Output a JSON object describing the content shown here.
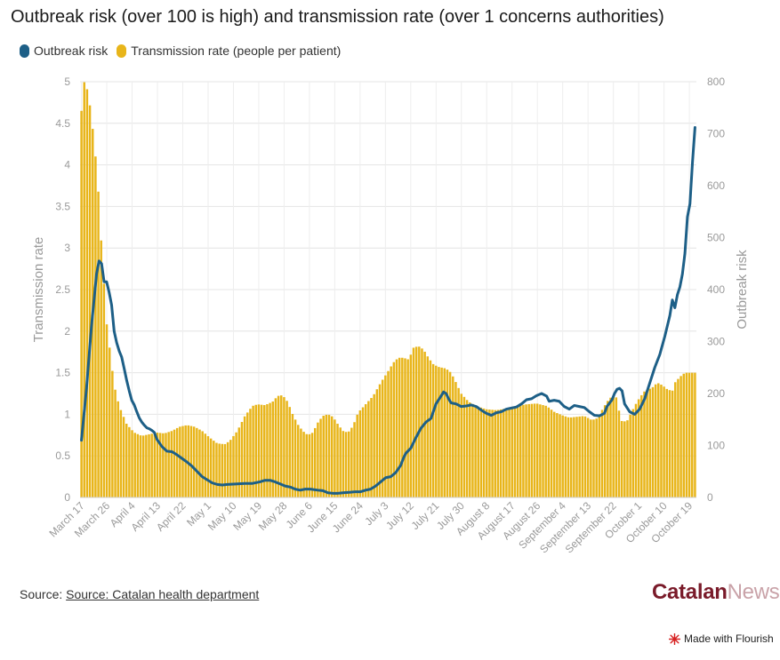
{
  "title": "Outbreak risk (over 100 is high) and transmission rate (over 1 concerns authorities)",
  "legend": [
    {
      "label": "Outbreak risk",
      "color": "#1d5f87"
    },
    {
      "label": "Transmission rate (people per patient)",
      "color": "#e8b51a"
    }
  ],
  "footer": {
    "source_prefix": "Source:",
    "source_link": "Source: Catalan health department",
    "brand_part1": "Catalan",
    "brand_part2": "News",
    "made_with": "Made with Flourish"
  },
  "chart_data": {
    "type": "bar+line",
    "title": "Outbreak risk (over 100 is high) and transmission rate (over 1 concerns authorities)",
    "x_tick_labels": [
      "March 17",
      "March 26",
      "April 4",
      "April 13",
      "April 22",
      "May 1",
      "May 10",
      "May 19",
      "May 28",
      "June 6",
      "June 15",
      "June 24",
      "July 3",
      "July 12",
      "July 21",
      "July 30",
      "August 8",
      "August 17",
      "August 26",
      "September 4",
      "September 13",
      "September 22",
      "October 1",
      "October 10",
      "October 19"
    ],
    "tick_interval_days": 9,
    "num_days": 219,
    "y_left": {
      "label": "Transmission rate",
      "min": 0,
      "max": 5,
      "ticks": [
        "0",
        "0.5",
        "1",
        "1.5",
        "2",
        "2.5",
        "3",
        "3.5",
        "4",
        "4.5",
        "5"
      ]
    },
    "y_right": {
      "label": "Outbreak risk",
      "min": 0,
      "max": 800,
      "ticks": [
        "0",
        "100",
        "200",
        "300",
        "400",
        "500",
        "600",
        "700",
        "800"
      ]
    },
    "grid": true,
    "bar_series": {
      "name": "Transmission rate (people per patient)",
      "color": "#e8b51a",
      "axis": "left",
      "keypoints_day_value": [
        [
          0,
          4.65
        ],
        [
          1,
          5.0
        ],
        [
          2,
          4.95
        ],
        [
          3,
          4.78
        ],
        [
          4,
          4.6
        ],
        [
          5,
          4.25
        ],
        [
          6,
          4.0
        ],
        [
          7,
          3.55
        ],
        [
          8,
          3.0
        ],
        [
          9,
          2.55
        ],
        [
          10,
          2.1
        ],
        [
          11,
          1.85
        ],
        [
          12,
          1.6
        ],
        [
          13,
          1.35
        ],
        [
          15,
          1.1
        ],
        [
          18,
          0.88
        ],
        [
          21,
          0.78
        ],
        [
          24,
          0.74
        ],
        [
          27,
          0.76
        ],
        [
          30,
          0.78
        ],
        [
          33,
          0.77
        ],
        [
          36,
          0.8
        ],
        [
          39,
          0.85
        ],
        [
          42,
          0.87
        ],
        [
          45,
          0.85
        ],
        [
          48,
          0.8
        ],
        [
          51,
          0.72
        ],
        [
          54,
          0.65
        ],
        [
          57,
          0.64
        ],
        [
          59,
          0.68
        ],
        [
          62,
          0.8
        ],
        [
          65,
          0.98
        ],
        [
          68,
          1.1
        ],
        [
          70,
          1.12
        ],
        [
          73,
          1.11
        ],
        [
          76,
          1.15
        ],
        [
          78,
          1.22
        ],
        [
          80,
          1.23
        ],
        [
          82,
          1.15
        ],
        [
          84,
          1.0
        ],
        [
          86,
          0.88
        ],
        [
          88,
          0.8
        ],
        [
          90,
          0.75
        ],
        [
          92,
          0.78
        ],
        [
          94,
          0.9
        ],
        [
          96,
          0.98
        ],
        [
          98,
          1.0
        ],
        [
          100,
          0.97
        ],
        [
          102,
          0.88
        ],
        [
          104,
          0.8
        ],
        [
          106,
          0.78
        ],
        [
          108,
          0.86
        ],
        [
          110,
          1.02
        ],
        [
          113,
          1.12
        ],
        [
          116,
          1.22
        ],
        [
          119,
          1.38
        ],
        [
          122,
          1.52
        ],
        [
          124,
          1.62
        ],
        [
          126,
          1.68
        ],
        [
          128,
          1.68
        ],
        [
          130,
          1.66
        ],
        [
          131,
          1.72
        ],
        [
          132,
          1.8
        ],
        [
          134,
          1.82
        ],
        [
          136,
          1.78
        ],
        [
          138,
          1.68
        ],
        [
          140,
          1.6
        ],
        [
          142,
          1.57
        ],
        [
          145,
          1.55
        ],
        [
          147,
          1.5
        ],
        [
          149,
          1.38
        ],
        [
          151,
          1.25
        ],
        [
          154,
          1.15
        ],
        [
          157,
          1.1
        ],
        [
          161,
          1.06
        ],
        [
          165,
          1.05
        ],
        [
          169,
          1.07
        ],
        [
          173,
          1.1
        ],
        [
          177,
          1.12
        ],
        [
          181,
          1.13
        ],
        [
          185,
          1.1
        ],
        [
          188,
          1.03
        ],
        [
          191,
          0.99
        ],
        [
          194,
          0.96
        ],
        [
          197,
          0.97
        ],
        [
          200,
          0.98
        ],
        [
          203,
          0.93
        ],
        [
          205,
          0.95
        ],
        [
          207,
          1.05
        ],
        [
          209,
          1.15
        ],
        [
          211,
          1.22
        ],
        [
          213,
          1.2
        ],
        [
          214,
          1.0
        ],
        [
          215,
          0.91
        ],
        [
          217,
          0.92
        ],
        [
          218,
          0.98
        ],
        [
          220,
          1.1
        ],
        [
          222,
          1.2
        ],
        [
          224,
          1.28
        ],
        [
          227,
          1.32
        ],
        [
          229,
          1.38
        ],
        [
          231,
          1.35
        ],
        [
          233,
          1.3
        ],
        [
          235,
          1.28
        ],
        [
          236,
          1.38
        ],
        [
          238,
          1.45
        ],
        [
          240,
          1.5
        ]
      ]
    },
    "line_series": {
      "name": "Outbreak risk",
      "color": "#1d5f87",
      "axis": "right",
      "keypoints_day_value": [
        [
          0,
          110
        ],
        [
          2,
          210
        ],
        [
          4,
          330
        ],
        [
          6,
          430
        ],
        [
          7,
          455
        ],
        [
          8,
          450
        ],
        [
          9,
          415
        ],
        [
          10,
          415
        ],
        [
          11,
          395
        ],
        [
          12,
          370
        ],
        [
          13,
          320
        ],
        [
          14,
          298
        ],
        [
          15,
          282
        ],
        [
          16,
          270
        ],
        [
          17,
          248
        ],
        [
          18,
          225
        ],
        [
          19,
          205
        ],
        [
          20,
          187
        ],
        [
          21,
          178
        ],
        [
          22,
          165
        ],
        [
          23,
          153
        ],
        [
          24,
          145
        ],
        [
          25,
          139
        ],
        [
          26,
          134
        ],
        [
          27,
          132
        ],
        [
          28,
          129
        ],
        [
          29,
          125
        ],
        [
          30,
          112
        ],
        [
          31,
          105
        ],
        [
          32,
          98
        ],
        [
          34,
          89
        ],
        [
          36,
          88
        ],
        [
          38,
          82
        ],
        [
          40,
          75
        ],
        [
          42,
          68
        ],
        [
          44,
          60
        ],
        [
          46,
          50
        ],
        [
          48,
          40
        ],
        [
          50,
          34
        ],
        [
          52,
          28
        ],
        [
          54,
          25
        ],
        [
          56,
          24
        ],
        [
          58,
          25
        ],
        [
          62,
          26
        ],
        [
          65,
          27
        ],
        [
          68,
          27
        ],
        [
          71,
          30
        ],
        [
          73,
          33
        ],
        [
          75,
          33
        ],
        [
          77,
          30
        ],
        [
          79,
          26
        ],
        [
          81,
          22
        ],
        [
          83,
          20
        ],
        [
          85,
          16
        ],
        [
          87,
          14
        ],
        [
          89,
          16
        ],
        [
          91,
          16
        ],
        [
          94,
          14
        ],
        [
          96,
          13
        ],
        [
          98,
          9
        ],
        [
          100,
          8
        ],
        [
          102,
          8
        ],
        [
          104,
          9
        ],
        [
          107,
          10
        ],
        [
          109,
          11
        ],
        [
          111,
          11
        ],
        [
          113,
          14
        ],
        [
          115,
          16
        ],
        [
          117,
          22
        ],
        [
          119,
          30
        ],
        [
          121,
          38
        ],
        [
          123,
          40
        ],
        [
          125,
          48
        ],
        [
          127,
          62
        ],
        [
          128,
          75
        ],
        [
          129,
          85
        ],
        [
          131,
          95
        ],
        [
          133,
          115
        ],
        [
          135,
          133
        ],
        [
          137,
          145
        ],
        [
          139,
          152
        ],
        [
          141,
          180
        ],
        [
          143,
          195
        ],
        [
          144,
          203
        ],
        [
          145,
          200
        ],
        [
          146,
          190
        ],
        [
          147,
          182
        ],
        [
          149,
          180
        ],
        [
          151,
          175
        ],
        [
          153,
          176
        ],
        [
          155,
          178
        ],
        [
          157,
          175
        ],
        [
          159,
          168
        ],
        [
          161,
          162
        ],
        [
          163,
          158
        ],
        [
          165,
          163
        ],
        [
          167,
          165
        ],
        [
          169,
          170
        ],
        [
          171,
          172
        ],
        [
          173,
          174
        ],
        [
          175,
          180
        ],
        [
          177,
          188
        ],
        [
          179,
          190
        ],
        [
          181,
          196
        ],
        [
          183,
          200
        ],
        [
          185,
          195
        ],
        [
          186,
          185
        ],
        [
          188,
          187
        ],
        [
          190,
          185
        ],
        [
          192,
          175
        ],
        [
          194,
          170
        ],
        [
          196,
          177
        ],
        [
          198,
          175
        ],
        [
          200,
          173
        ],
        [
          202,
          165
        ],
        [
          204,
          158
        ],
        [
          206,
          157
        ],
        [
          208,
          162
        ],
        [
          209,
          175
        ],
        [
          211,
          188
        ],
        [
          212,
          200
        ],
        [
          213,
          208
        ],
        [
          214,
          210
        ],
        [
          215,
          205
        ],
        [
          216,
          180
        ],
        [
          218,
          165
        ],
        [
          220,
          160
        ],
        [
          222,
          170
        ],
        [
          224,
          190
        ],
        [
          226,
          220
        ],
        [
          228,
          250
        ],
        [
          230,
          275
        ],
        [
          232,
          310
        ],
        [
          233,
          330
        ],
        [
          234,
          350
        ],
        [
          235,
          380
        ],
        [
          236,
          365
        ],
        [
          237,
          390
        ],
        [
          238,
          405
        ],
        [
          239,
          430
        ],
        [
          240,
          470
        ],
        [
          241,
          540
        ],
        [
          242,
          565
        ],
        [
          243,
          645
        ],
        [
          244,
          712
        ]
      ]
    }
  }
}
